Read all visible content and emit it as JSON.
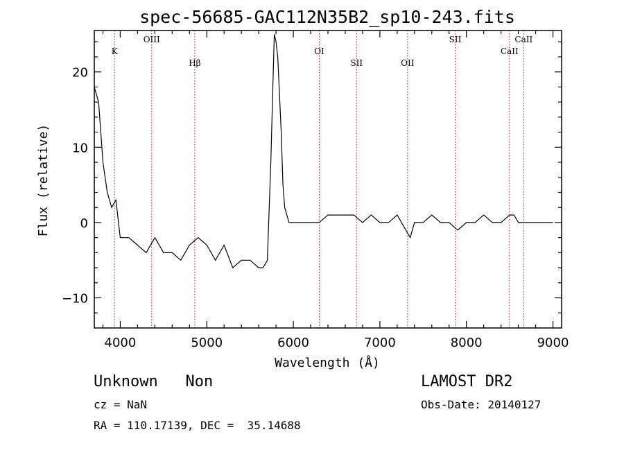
{
  "chart_data": {
    "type": "line",
    "title": "spec-56685-GAC112N35B2_sp10-243.fits",
    "xlabel": "Wavelength (Å)",
    "ylabel": "Flux (relative)",
    "xlim": [
      3700,
      9100
    ],
    "ylim": [
      -14,
      25.5
    ],
    "x_ticks": [
      4000,
      5000,
      6000,
      7000,
      8000,
      9000
    ],
    "y_ticks": [
      -10,
      0,
      10,
      20
    ],
    "grid": false,
    "series": [
      {
        "x": [
          3700,
          3750,
          3800,
          3850,
          3900,
          3950,
          4000,
          4100,
          4200,
          4300,
          4400,
          4500,
          4600,
          4700,
          4800,
          4900,
          5000,
          5100,
          5200,
          5300,
          5400,
          5500,
          5600,
          5650,
          5700,
          5740,
          5780,
          5800,
          5820,
          5860,
          5880,
          5900,
          5950,
          6000,
          6100,
          6200,
          6300,
          6400,
          6500,
          6600,
          6700,
          6800,
          6900,
          7000,
          7100,
          7200,
          7300,
          7350,
          7400,
          7500,
          7600,
          7700,
          7800,
          7900,
          8000,
          8100,
          8200,
          8300,
          8400,
          8500,
          8550,
          8600,
          8700,
          8800,
          8900,
          9000
        ],
        "y": [
          18,
          16,
          8,
          4,
          2,
          3,
          -2,
          -2,
          -3,
          -4,
          -2,
          -4,
          -4,
          -5,
          -3,
          -2,
          -3,
          -5,
          -3,
          -6,
          -5,
          -5,
          -6,
          -6,
          -5,
          8,
          25,
          24,
          22,
          12,
          5,
          2,
          0,
          0,
          0,
          0,
          0,
          1,
          1,
          1,
          1,
          0,
          1,
          0,
          0,
          1,
          -1,
          -2,
          0,
          0,
          1,
          0,
          0,
          -1,
          0,
          0,
          1,
          0,
          0,
          1,
          1,
          0,
          0,
          0,
          0,
          0
        ]
      }
    ],
    "lines": [
      {
        "label": "K",
        "x": 3934,
        "row": 1
      },
      {
        "label": "OIII",
        "x": 4363,
        "row": 0
      },
      {
        "label": "Hβ",
        "x": 4861,
        "row": 2
      },
      {
        "label": "OI",
        "x": 6300,
        "row": 1
      },
      {
        "label": "SII",
        "x": 6731,
        "row": 2
      },
      {
        "label": "OII",
        "x": 7320,
        "row": 2
      },
      {
        "label": "SII",
        "x": 7870,
        "row": 0
      },
      {
        "label": "CaII",
        "x": 8498,
        "row": 1
      },
      {
        "label": "CaII",
        "x": 8662,
        "row": 0
      }
    ],
    "line_color": "#a02020"
  },
  "info": {
    "class": "Unknown   Non",
    "cz": "cz = NaN",
    "radec": "RA = 110.17139, DEC =  35.14688",
    "survey": "LAMOST DR2",
    "obsdate": "Obs-Date: 20140127"
  }
}
